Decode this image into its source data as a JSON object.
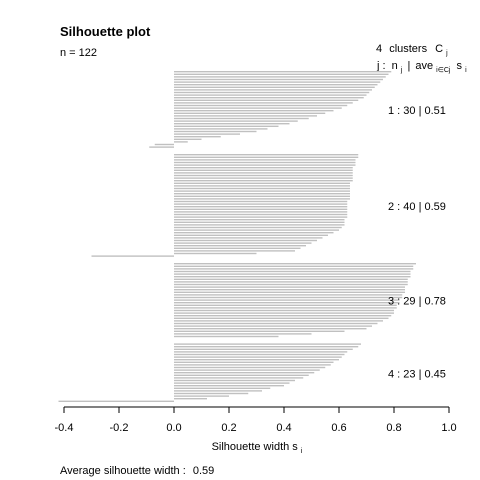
{
  "chart_data": {
    "type": "bar",
    "orientation": "horizontal",
    "title": "Silhouette plot",
    "subtitle": "n = 122",
    "xlabel_main": "Silhouette width s",
    "xlabel_sub": "i",
    "footer_label": "Average silhouette width :",
    "footer_value": "0.59",
    "xlim": [
      -0.4,
      1.0
    ],
    "xticks": [
      "-0.4",
      "-0.2",
      "0.0",
      "0.2",
      "0.4",
      "0.6",
      "0.8",
      "1.0"
    ],
    "bar_color": "#c0c0c0",
    "legend": {
      "count": "4",
      "clusters_word": "clusters",
      "c_letter": "C",
      "c_sub": "j",
      "header_j": "j :",
      "header_n": "n",
      "header_n_sub": "j",
      "header_sep": "|",
      "header_ave": "ave",
      "header_ave_sub": "i∈Cj",
      "header_s": "s",
      "header_s_sub": "i"
    },
    "clusters": [
      {
        "id": "1",
        "n": "30",
        "ave": "0.51",
        "label_text": "1 :  30  |  0.51",
        "values": [
          0.79,
          0.78,
          0.77,
          0.76,
          0.75,
          0.74,
          0.73,
          0.72,
          0.71,
          0.7,
          0.69,
          0.67,
          0.65,
          0.63,
          0.61,
          0.58,
          0.55,
          0.52,
          0.49,
          0.45,
          0.42,
          0.38,
          0.34,
          0.3,
          0.24,
          0.17,
          0.1,
          0.05,
          -0.07,
          -0.09
        ]
      },
      {
        "id": "2",
        "n": "40",
        "ave": "0.59",
        "label_text": "2 :  40  |  0.59",
        "values": [
          0.67,
          0.67,
          0.66,
          0.66,
          0.66,
          0.65,
          0.65,
          0.65,
          0.65,
          0.65,
          0.65,
          0.64,
          0.64,
          0.64,
          0.64,
          0.64,
          0.64,
          0.64,
          0.63,
          0.63,
          0.63,
          0.63,
          0.63,
          0.63,
          0.63,
          0.62,
          0.62,
          0.62,
          0.61,
          0.6,
          0.58,
          0.56,
          0.54,
          0.52,
          0.5,
          0.48,
          0.46,
          0.44,
          0.3,
          -0.3
        ]
      },
      {
        "id": "3",
        "n": "29",
        "ave": "0.78",
        "label_text": "3 :  29  |  0.78",
        "values": [
          0.88,
          0.87,
          0.87,
          0.86,
          0.86,
          0.86,
          0.85,
          0.85,
          0.85,
          0.84,
          0.84,
          0.84,
          0.83,
          0.83,
          0.82,
          0.82,
          0.81,
          0.81,
          0.8,
          0.8,
          0.79,
          0.78,
          0.76,
          0.74,
          0.72,
          0.7,
          0.62,
          0.5,
          0.38
        ]
      },
      {
        "id": "4",
        "n": "23",
        "ave": "0.45",
        "label_text": "4 :  23  |  0.45",
        "values": [
          0.68,
          0.67,
          0.65,
          0.63,
          0.62,
          0.61,
          0.6,
          0.58,
          0.57,
          0.55,
          0.53,
          0.51,
          0.49,
          0.47,
          0.44,
          0.42,
          0.4,
          0.35,
          0.32,
          0.27,
          0.2,
          0.12,
          -0.42
        ]
      }
    ]
  }
}
